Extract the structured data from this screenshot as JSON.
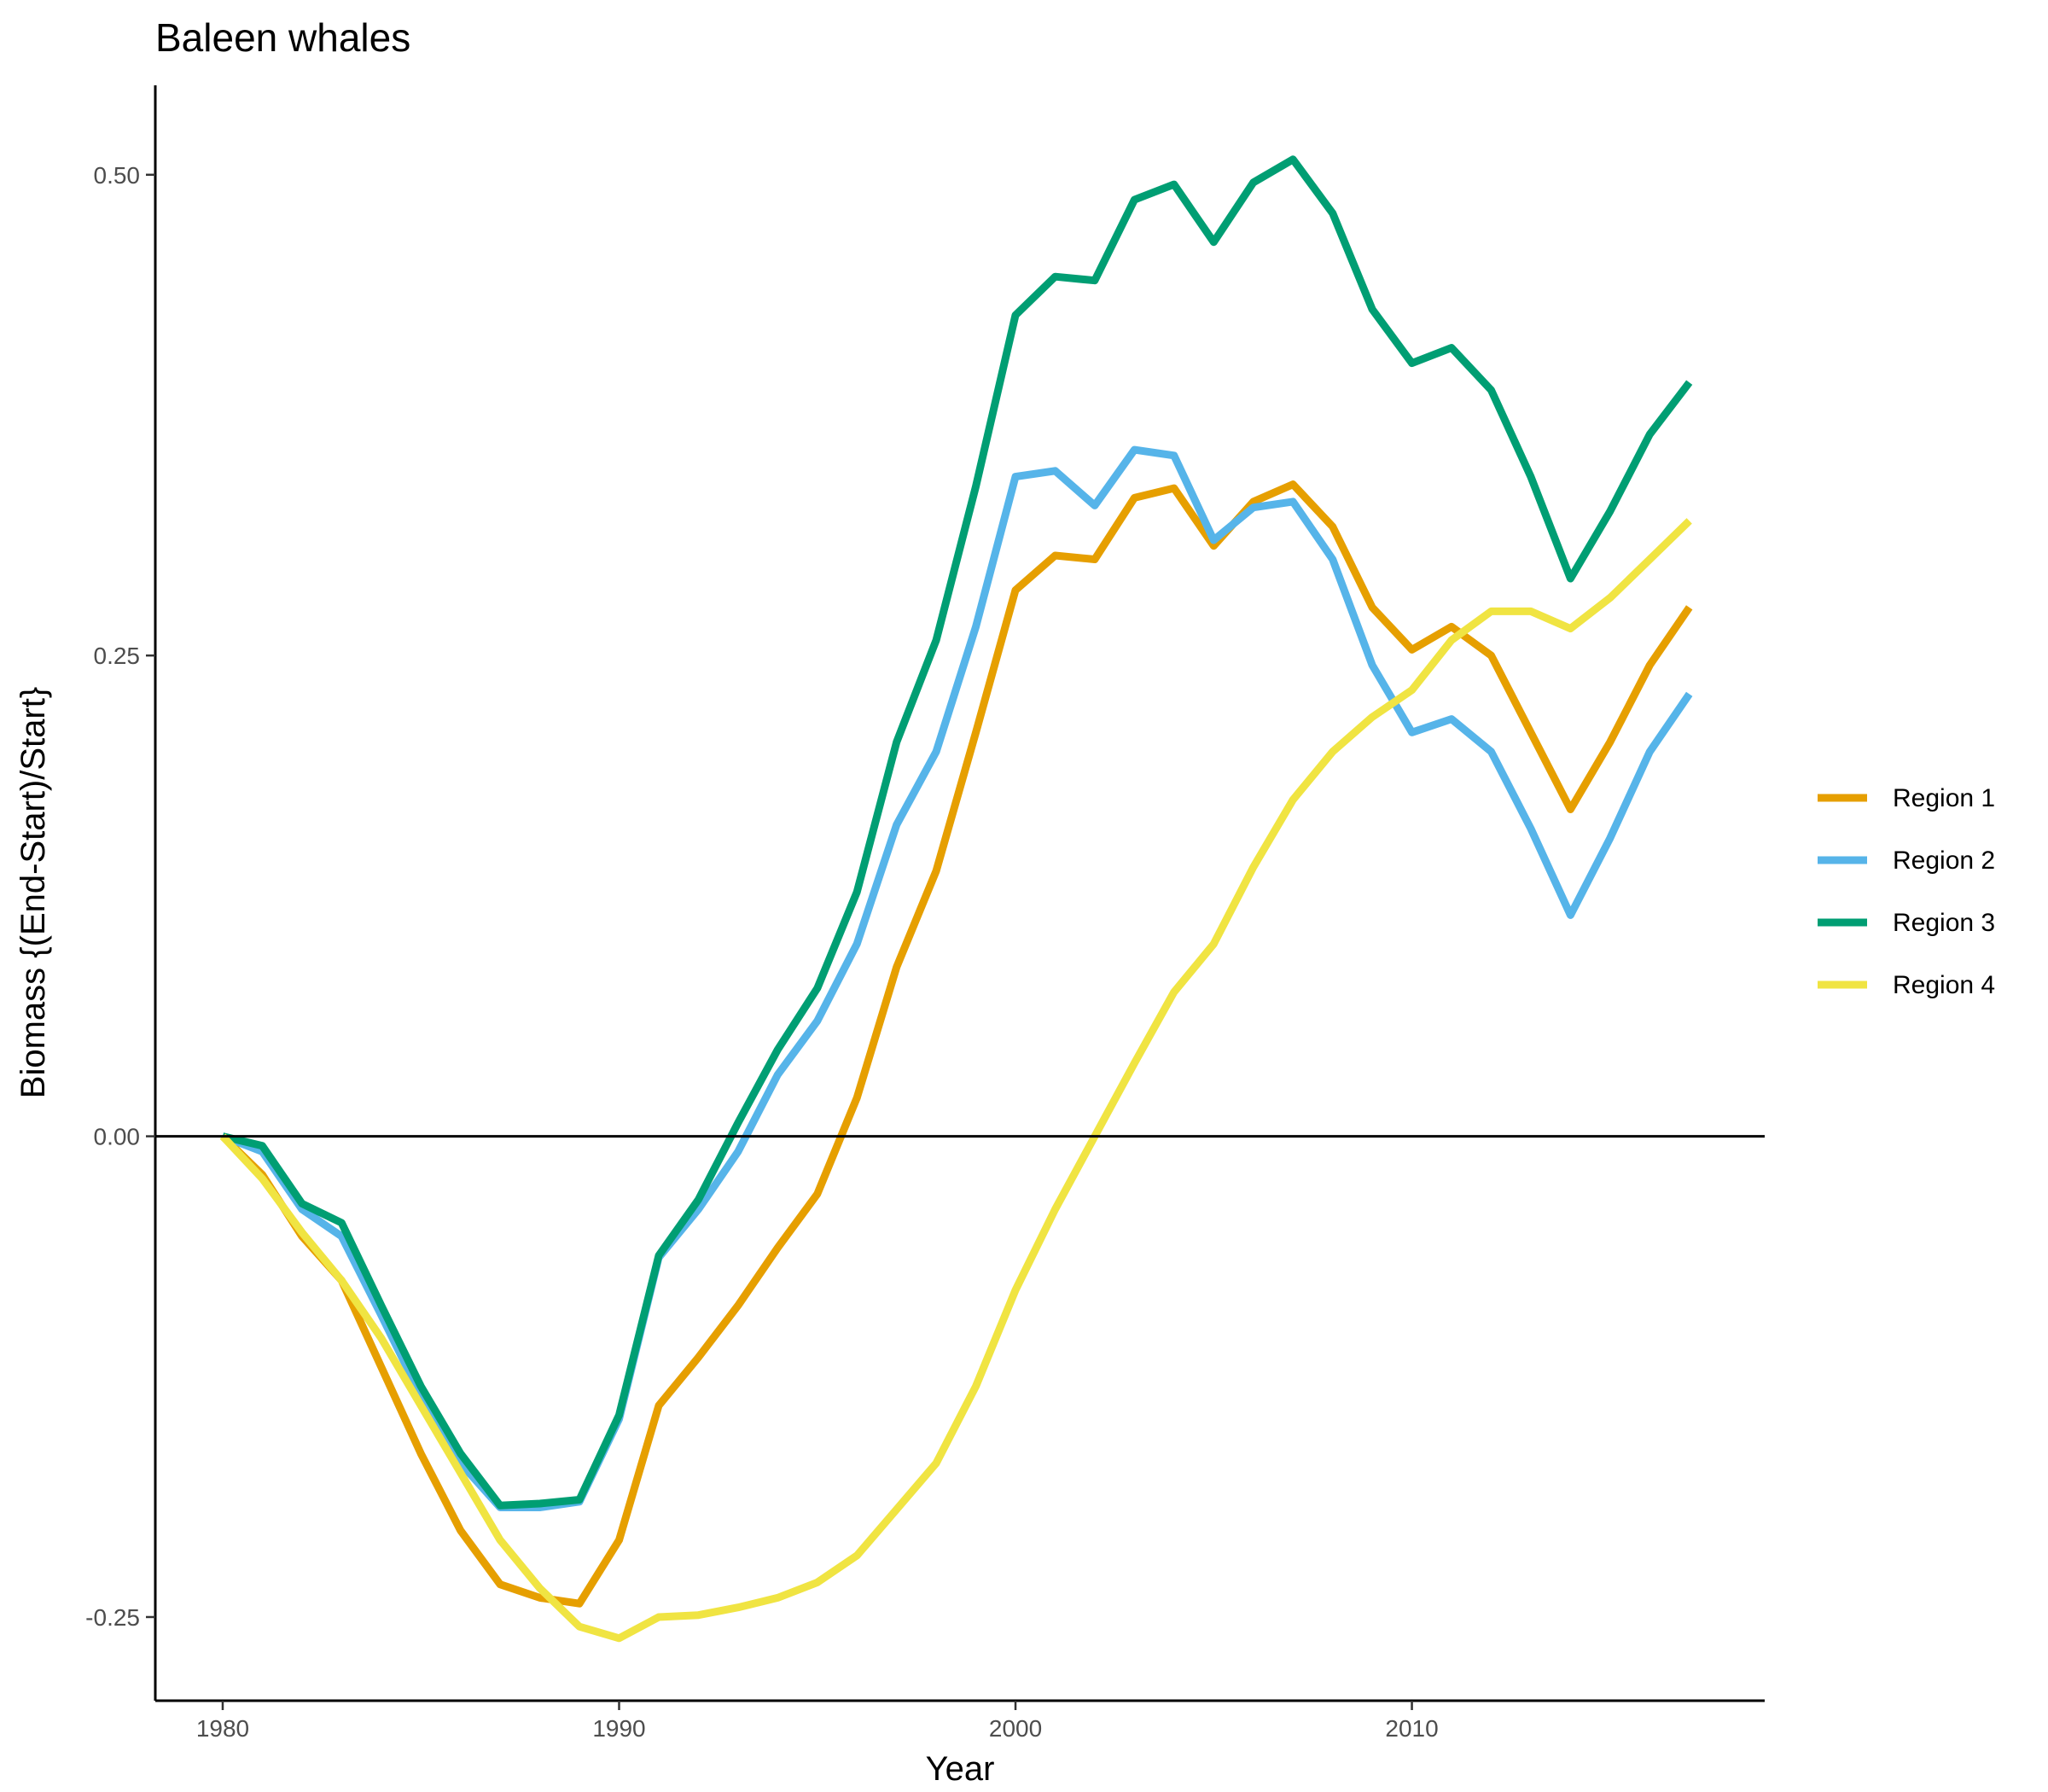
{
  "chart_data": {
    "type": "line",
    "title": "Baleen whales",
    "xlabel": "Year",
    "ylabel": "Biomass {(End-Start)/Start}",
    "xlim": [
      1978.3,
      2018.9
    ],
    "ylim": [
      -0.2935,
      0.5465
    ],
    "x_ticks": [
      1980,
      1990,
      2000,
      2010
    ],
    "x_tick_labels": [
      "1980",
      "1990",
      "2000",
      "2010"
    ],
    "y_ticks": [
      -0.25,
      0,
      0.25,
      0.5
    ],
    "y_tick_labels": [
      "-0.25",
      "0.00",
      "0.25",
      "0.50"
    ],
    "hline": 0,
    "grid": false,
    "legend_position": "right",
    "x": [
      1980,
      1981,
      1982,
      1983,
      1984,
      1985,
      1986,
      1987,
      1988,
      1989,
      1990,
      1991,
      1992,
      1993,
      1994,
      1995,
      1996,
      1997,
      1998,
      1999,
      2000,
      2001,
      2002,
      2003,
      2004,
      2005,
      2006,
      2007,
      2008,
      2009,
      2010,
      2011,
      2012,
      2013,
      2014,
      2015,
      2016,
      2017
    ],
    "series": [
      {
        "name": "Region 1",
        "color": "#E69F00",
        "values": [
          0,
          -0.02,
          -0.052,
          -0.075,
          -0.12,
          -0.165,
          -0.205,
          -0.233,
          -0.24,
          -0.243,
          -0.21,
          -0.14,
          -0.115,
          -0.088,
          -0.058,
          -0.03,
          0.02,
          0.088,
          0.138,
          0.21,
          0.284,
          0.302,
          0.3,
          0.332,
          0.337,
          0.307,
          0.33,
          0.339,
          0.317,
          0.275,
          0.253,
          0.265,
          0.25,
          0.21,
          0.17,
          0.205,
          0.245,
          0.275
        ]
      },
      {
        "name": "Region 2",
        "color": "#56B4E9",
        "values": [
          0,
          -0.008,
          -0.038,
          -0.052,
          -0.093,
          -0.135,
          -0.17,
          -0.193,
          -0.193,
          -0.19,
          -0.147,
          -0.063,
          -0.038,
          -0.008,
          0.032,
          0.06,
          0.1,
          0.162,
          0.2,
          0.265,
          0.343,
          0.346,
          0.328,
          0.357,
          0.354,
          0.31,
          0.327,
          0.33,
          0.3,
          0.245,
          0.21,
          0.217,
          0.2,
          0.16,
          0.115,
          0.155,
          0.2,
          0.23
        ]
      },
      {
        "name": "Region 3",
        "color": "#009E73",
        "values": [
          0,
          -0.005,
          -0.035,
          -0.045,
          -0.088,
          -0.13,
          -0.165,
          -0.192,
          -0.191,
          -0.189,
          -0.145,
          -0.062,
          -0.033,
          0.007,
          0.045,
          0.077,
          0.127,
          0.205,
          0.258,
          0.338,
          0.427,
          0.447,
          0.445,
          0.487,
          0.495,
          0.465,
          0.496,
          0.508,
          0.48,
          0.43,
          0.402,
          0.41,
          0.388,
          0.343,
          0.29,
          0.325,
          0.365,
          0.392
        ]
      },
      {
        "name": "Region 4",
        "color": "#F0E442",
        "values": [
          0,
          -0.022,
          -0.05,
          -0.075,
          -0.105,
          -0.14,
          -0.175,
          -0.21,
          -0.235,
          -0.255,
          -0.261,
          -0.25,
          -0.249,
          -0.245,
          -0.24,
          -0.232,
          -0.218,
          -0.194,
          -0.17,
          -0.13,
          -0.08,
          -0.038,
          0,
          0.038,
          0.075,
          0.1,
          0.14,
          0.175,
          0.2,
          0.218,
          0.232,
          0.258,
          0.273,
          0.273,
          0.264,
          0.28,
          0.3,
          0.32
        ]
      }
    ]
  }
}
